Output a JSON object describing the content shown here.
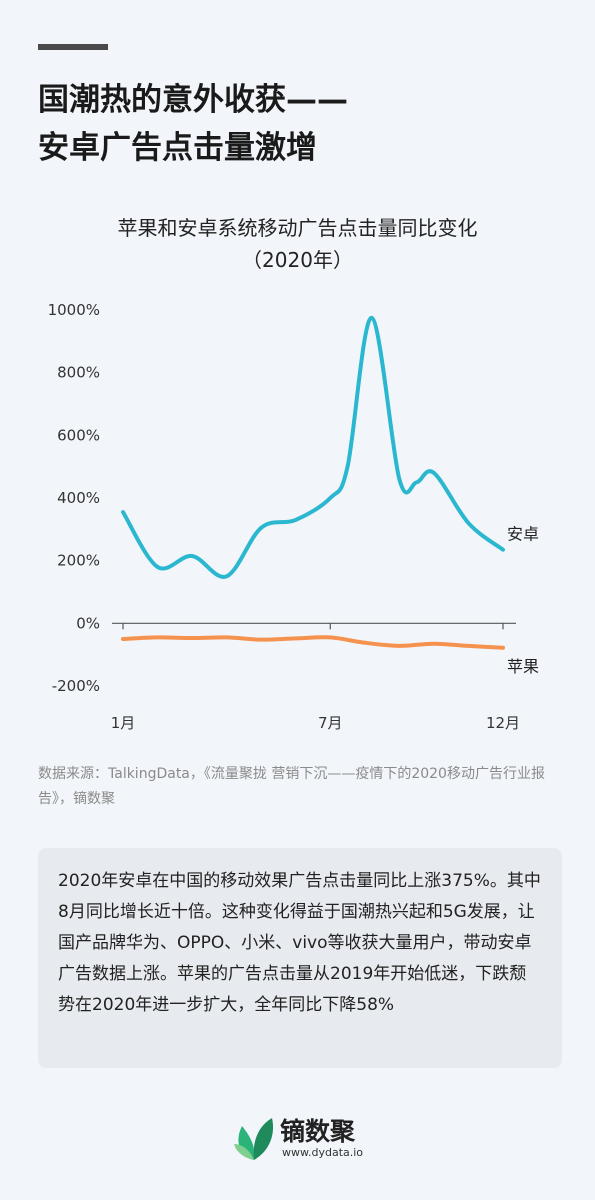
{
  "headline": {
    "line1": "国潮热的意外收获——",
    "line2": "安卓广告点击量激增"
  },
  "chart_data": {
    "type": "line",
    "title": "苹果和安卓系统移动广告点击量同比变化",
    "subtitle": "（2020年）",
    "x_tick_labels": [
      "1月",
      "7月",
      "12月"
    ],
    "y_tick_labels": [
      "1000%",
      "800%",
      "600%",
      "400%",
      "200%",
      "0%",
      "-200%"
    ],
    "ylim": [
      -200,
      1000
    ],
    "xlim": [
      1,
      12
    ],
    "grid": false,
    "series": [
      {
        "name": "安卓",
        "color": "#2bb7cf",
        "x": [
          1,
          2,
          3,
          4,
          5,
          6,
          7,
          7.5,
          8.2,
          9,
          9.5,
          10,
          11,
          12
        ],
        "y": [
          355,
          180,
          215,
          150,
          305,
          330,
          400,
          500,
          975,
          460,
          450,
          480,
          320,
          235
        ]
      },
      {
        "name": "苹果",
        "color": "#f5924e",
        "x": [
          1,
          2,
          3,
          4,
          5,
          6,
          7,
          8,
          9,
          10,
          11,
          12
        ],
        "y": [
          -50,
          -45,
          -47,
          -45,
          -52,
          -48,
          -45,
          -62,
          -72,
          -65,
          -72,
          -78
        ]
      }
    ]
  },
  "source": "数据来源：TalkingData，《流量聚拢 营销下沉——疫情下的2020移动广告行业报告》，镝数聚",
  "note": "2020年安卓在中国的移动效果广告点击量同比上涨375%。其中8月同比增长近十倍。这种变化得益于国潮热兴起和5G发展，让国产品牌华为、OPPO、小米、vivo等收获大量用户，带动安卓广告数据上涨。苹果的广告点击量从2019年开始低迷，下跌颓势在2020年进一步扩大，全年同比下降58%",
  "brand": {
    "name": "镝数聚",
    "url": "www.dydata.io",
    "logo_icon": "leaf-logo-icon",
    "logo_colors": [
      "#2bb37a",
      "#1f8a5c",
      "#7fcf8f"
    ]
  }
}
